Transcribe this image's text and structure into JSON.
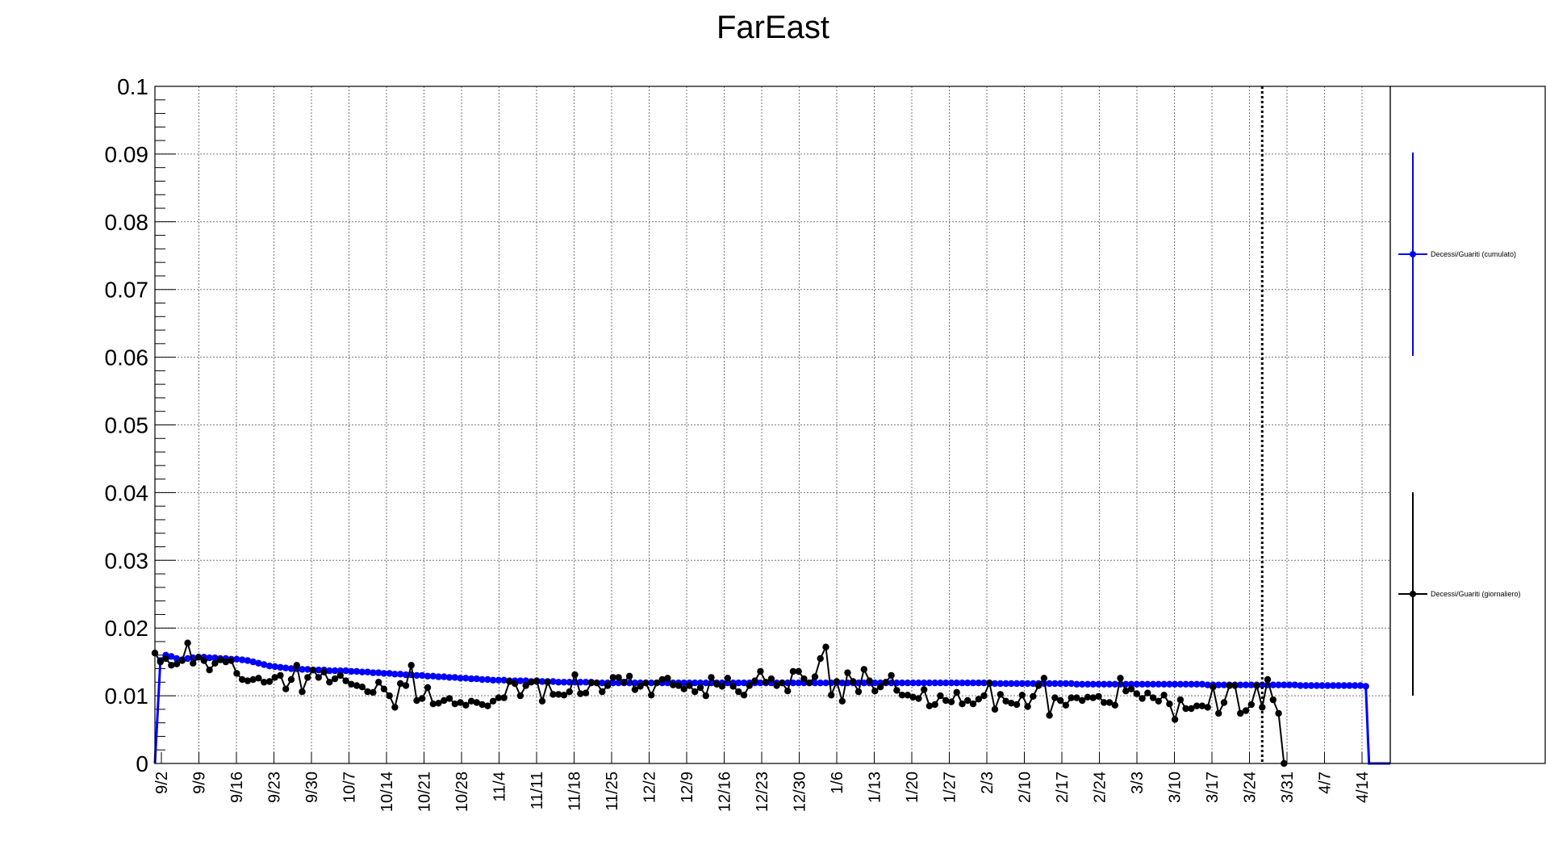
{
  "title": "FarEast",
  "chart_data": {
    "type": "line",
    "title": "FarEast",
    "xlabel": "",
    "ylabel": "",
    "ylim": [
      0,
      0.1
    ],
    "y_ticks": [
      "0",
      "0.01",
      "0.02",
      "0.03",
      "0.04",
      "0.05",
      "0.06",
      "0.07",
      "0.08",
      "0.09",
      "0.1"
    ],
    "x_start_date": "2020-09-02",
    "x_end_date": "2021-04-18",
    "x_tick_labels": [
      "9/2",
      "9/9",
      "9/16",
      "9/23",
      "9/30",
      "10/7",
      "10/14",
      "10/21",
      "10/28",
      "11/4",
      "11/11",
      "11/18",
      "11/25",
      "12/2",
      "12/9",
      "12/16",
      "12/23",
      "12/30",
      "1/6",
      "1/13",
      "1/20",
      "1/27",
      "2/3",
      "2/10",
      "2/17",
      "2/24",
      "3/3",
      "3/10",
      "3/17",
      "3/24",
      "3/31",
      "4/7",
      "4/14"
    ],
    "marker_line_date": "2021-03-24",
    "grid": true,
    "legend_position": "right",
    "series": [
      {
        "name": "Decessi/Guariti (cumulato)",
        "color": "#0000ff",
        "values": [
          0.0,
          0.0152,
          0.016,
          0.0158,
          0.0155,
          0.0153,
          0.0155,
          0.0156,
          0.0157,
          0.0157,
          0.0156,
          0.0156,
          0.0155,
          0.0155,
          0.0154,
          0.0154,
          0.0153,
          0.0152,
          0.015,
          0.0148,
          0.0146,
          0.0144,
          0.0143,
          0.0142,
          0.0141,
          0.014,
          0.014,
          0.0139,
          0.0139,
          0.0138,
          0.0138,
          0.0138,
          0.0137,
          0.0137,
          0.0137,
          0.0137,
          0.0136,
          0.0136,
          0.0135,
          0.0135,
          0.0134,
          0.0134,
          0.0133,
          0.0133,
          0.0132,
          0.0132,
          0.0131,
          0.0131,
          0.013,
          0.013,
          0.0129,
          0.0129,
          0.0128,
          0.0128,
          0.0127,
          0.0127,
          0.0126,
          0.0126,
          0.0125,
          0.0125,
          0.0124,
          0.0124,
          0.0123,
          0.0123,
          0.0123,
          0.0122,
          0.0122,
          0.0122,
          0.0122,
          0.0121,
          0.0121,
          0.0121,
          0.0121,
          0.0121,
          0.012,
          0.012,
          0.012,
          0.012,
          0.012,
          0.012,
          0.012,
          0.0119,
          0.0119,
          0.0119,
          0.0119,
          0.0119,
          0.0119,
          0.0119,
          0.0119,
          0.0119,
          0.0119,
          0.0119,
          0.0119,
          0.0119,
          0.0119,
          0.0119,
          0.0119,
          0.0119,
          0.0119,
          0.0119,
          0.0119,
          0.0119,
          0.0119,
          0.0119,
          0.0119,
          0.0119,
          0.0119,
          0.0119,
          0.0119,
          0.0119,
          0.0119,
          0.0119,
          0.0119,
          0.0119,
          0.0119,
          0.0119,
          0.0119,
          0.0119,
          0.0119,
          0.0119,
          0.0119,
          0.0119,
          0.0119,
          0.0119,
          0.0119,
          0.0119,
          0.0119,
          0.0119,
          0.0119,
          0.0119,
          0.0119,
          0.0119,
          0.0119,
          0.0119,
          0.0119,
          0.0119,
          0.0119,
          0.0119,
          0.0119,
          0.0119,
          0.0119,
          0.0119,
          0.0119,
          0.0119,
          0.0119,
          0.0119,
          0.0119,
          0.0119,
          0.0119,
          0.0119,
          0.0119,
          0.0119,
          0.0119,
          0.0118,
          0.0118,
          0.0118,
          0.0118,
          0.0118,
          0.0118,
          0.0118,
          0.0118,
          0.0118,
          0.0118,
          0.0118,
          0.0118,
          0.0118,
          0.0118,
          0.0118,
          0.0118,
          0.0117,
          0.0117,
          0.0117,
          0.0117,
          0.0117,
          0.0117,
          0.0117,
          0.0117,
          0.0117,
          0.0117,
          0.0117,
          0.0117,
          0.0117,
          0.0117,
          0.0117,
          0.0117,
          0.0117,
          0.0117,
          0.0117,
          0.0117,
          0.0117,
          0.0117,
          0.0117,
          0.0117,
          0.0116,
          0.0116,
          0.0116,
          0.0116,
          0.0116,
          0.0116,
          0.0116,
          0.0116,
          0.0116,
          0.0116,
          0.0116,
          0.0116,
          0.0116,
          0.0116,
          0.0116,
          0.0116,
          0.0116,
          0.0115,
          0.0115,
          0.0115,
          0.0115,
          0.0115,
          0.0115,
          0.0115,
          0.0115,
          0.0115,
          0.0115,
          0.0115,
          0.0115,
          0.0114
        ]
      },
      {
        "name": "Decessi/Guariti (giornaliero)",
        "color": "#000000",
        "values": [
          0.0163,
          0.015,
          0.0155,
          0.0145,
          0.0147,
          0.0152,
          0.0178,
          0.0148,
          0.0157,
          0.0152,
          0.0138,
          0.0148,
          0.0153,
          0.015,
          0.0152,
          0.0133,
          0.0124,
          0.0122,
          0.0124,
          0.0126,
          0.012,
          0.0121,
          0.0127,
          0.013,
          0.011,
          0.0124,
          0.0145,
          0.0106,
          0.0127,
          0.0138,
          0.0127,
          0.0135,
          0.012,
          0.0125,
          0.013,
          0.0122,
          0.0117,
          0.0115,
          0.0113,
          0.0106,
          0.0105,
          0.012,
          0.011,
          0.01,
          0.0083,
          0.0118,
          0.0115,
          0.0145,
          0.0093,
          0.0096,
          0.0112,
          0.0088,
          0.0089,
          0.0093,
          0.0096,
          0.0088,
          0.009,
          0.0086,
          0.0092,
          0.009,
          0.0087,
          0.0085,
          0.0092,
          0.0097,
          0.0097,
          0.0121,
          0.0118,
          0.01,
          0.0115,
          0.012,
          0.0122,
          0.0092,
          0.012,
          0.0102,
          0.0102,
          0.0101,
          0.0106,
          0.0131,
          0.0103,
          0.0104,
          0.0119,
          0.0119,
          0.0106,
          0.0115,
          0.0127,
          0.0127,
          0.012,
          0.0129,
          0.0109,
          0.0114,
          0.0119,
          0.0101,
          0.0119,
          0.0124,
          0.0126,
          0.0116,
          0.0115,
          0.011,
          0.0115,
          0.0106,
          0.0112,
          0.01,
          0.0127,
          0.0117,
          0.0114,
          0.0126,
          0.0114,
          0.0106,
          0.0101,
          0.0115,
          0.0122,
          0.0136,
          0.012,
          0.0125,
          0.0115,
          0.0119,
          0.0107,
          0.0136,
          0.0136,
          0.0125,
          0.0119,
          0.0128,
          0.0155,
          0.0172,
          0.0101,
          0.0121,
          0.0092,
          0.0134,
          0.0121,
          0.0106,
          0.0139,
          0.0122,
          0.0107,
          0.0113,
          0.012,
          0.013,
          0.0108,
          0.0101,
          0.0101,
          0.0098,
          0.0096,
          0.0109,
          0.0085,
          0.0087,
          0.01,
          0.0093,
          0.0091,
          0.0105,
          0.0088,
          0.0093,
          0.0088,
          0.0095,
          0.01,
          0.0119,
          0.008,
          0.0102,
          0.0092,
          0.0089,
          0.0087,
          0.0101,
          0.0084,
          0.0099,
          0.0115,
          0.0126,
          0.0071,
          0.0097,
          0.0093,
          0.0086,
          0.0097,
          0.0097,
          0.0093,
          0.0098,
          0.0097,
          0.0099,
          0.009,
          0.009,
          0.0086,
          0.0126,
          0.0107,
          0.011,
          0.0103,
          0.0096,
          0.0104,
          0.0097,
          0.0092,
          0.0101,
          0.0088,
          0.0065,
          0.0094,
          0.0081,
          0.0081,
          0.0085,
          0.0085,
          0.0083,
          0.0113,
          0.0074,
          0.009,
          0.0115,
          0.0115,
          0.0074,
          0.0078,
          0.0087,
          0.0115,
          0.0083,
          0.0124,
          0.0094,
          0.0074,
          0.0,
          null,
          null,
          null,
          null,
          null
        ]
      }
    ]
  }
}
